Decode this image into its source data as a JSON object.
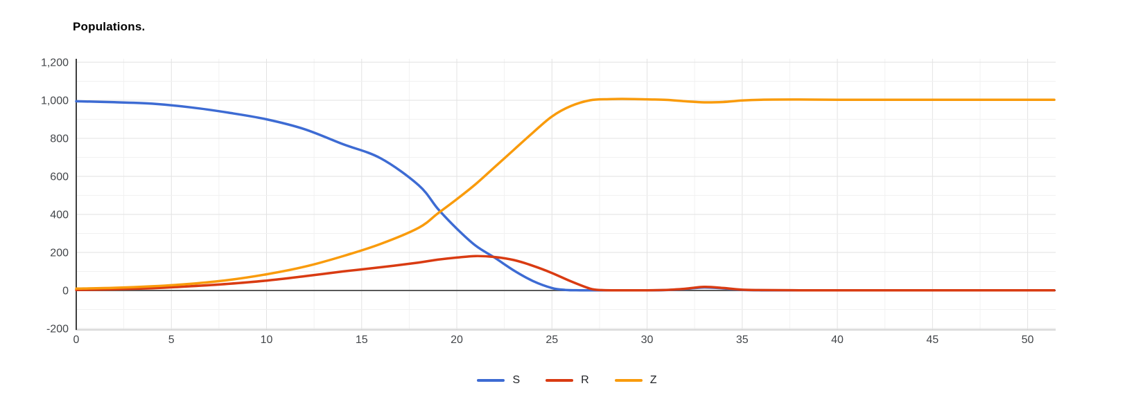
{
  "title": "Populations.",
  "colors": {
    "series_s": "#3D6BD3",
    "series_r": "#D93B12",
    "series_z": "#F99B0C",
    "grid_major": "#e2e2e2",
    "grid_minor": "#f1f1f1",
    "zero_line": "#585858",
    "y_axis_line": "#3c3c3c",
    "bottom_border": "#cccccc",
    "tick_label": "#424549",
    "background": "#ffffff"
  },
  "chart_data": {
    "type": "line",
    "title": "Populations.",
    "xlabel": "",
    "ylabel": "",
    "xlim": [
      0,
      51.4
    ],
    "ylim": [
      -200,
      1200
    ],
    "x_ticks": [
      0,
      5,
      10,
      15,
      20,
      25,
      30,
      35,
      40,
      45,
      50
    ],
    "x_minor_step": 2.5,
    "y_ticks": [
      -200,
      0,
      200,
      400,
      600,
      800,
      1000,
      1200
    ],
    "y_tick_labels": [
      "-200",
      "0",
      "200",
      "400",
      "600",
      "800",
      "1,000",
      "1,200"
    ],
    "y_minor_step": 100,
    "grid": "on",
    "smooth": true,
    "legend_position": "bottom-center",
    "series": [
      {
        "name": "S",
        "color": "#3D6BD3",
        "points": [
          [
            0,
            995
          ],
          [
            2,
            990
          ],
          [
            4,
            982
          ],
          [
            6,
            963
          ],
          [
            8,
            935
          ],
          [
            10,
            900
          ],
          [
            12,
            848
          ],
          [
            14,
            770
          ],
          [
            16,
            695
          ],
          [
            18,
            553
          ],
          [
            19,
            430
          ],
          [
            20,
            325
          ],
          [
            21,
            235
          ],
          [
            22,
            172
          ],
          [
            23,
            105
          ],
          [
            24,
            50
          ],
          [
            25,
            13
          ],
          [
            25.7,
            3
          ],
          [
            26.5,
            1
          ],
          [
            28,
            1
          ],
          [
            30,
            1
          ],
          [
            31,
            2
          ],
          [
            32,
            8
          ],
          [
            33,
            16
          ],
          [
            34,
            11
          ],
          [
            35,
            3
          ],
          [
            36,
            1
          ],
          [
            38,
            1
          ],
          [
            42,
            1
          ],
          [
            46,
            1
          ],
          [
            49,
            1
          ],
          [
            51.4,
            1
          ]
        ]
      },
      {
        "name": "R",
        "color": "#D93B12",
        "points": [
          [
            0,
            3
          ],
          [
            2,
            6
          ],
          [
            4,
            12
          ],
          [
            6,
            22
          ],
          [
            8,
            35
          ],
          [
            10,
            52
          ],
          [
            12,
            75
          ],
          [
            14,
            100
          ],
          [
            16,
            122
          ],
          [
            18,
            147
          ],
          [
            19,
            162
          ],
          [
            20,
            173
          ],
          [
            21,
            181
          ],
          [
            22,
            176
          ],
          [
            23,
            160
          ],
          [
            24,
            130
          ],
          [
            25,
            92
          ],
          [
            26,
            48
          ],
          [
            27,
            10
          ],
          [
            27.6,
            2
          ],
          [
            28.5,
            1
          ],
          [
            30,
            1
          ],
          [
            31,
            3
          ],
          [
            32,
            9
          ],
          [
            33,
            19
          ],
          [
            34,
            13
          ],
          [
            35,
            4
          ],
          [
            36,
            2
          ],
          [
            38,
            1
          ],
          [
            42,
            1
          ],
          [
            46,
            1
          ],
          [
            49,
            1
          ],
          [
            51.4,
            1
          ]
        ]
      },
      {
        "name": "Z",
        "color": "#F99B0C",
        "points": [
          [
            0,
            10
          ],
          [
            2,
            14
          ],
          [
            4,
            22
          ],
          [
            6,
            35
          ],
          [
            8,
            55
          ],
          [
            10,
            85
          ],
          [
            12,
            125
          ],
          [
            14,
            180
          ],
          [
            16,
            245
          ],
          [
            18,
            330
          ],
          [
            19,
            405
          ],
          [
            20,
            480
          ],
          [
            21,
            560
          ],
          [
            22,
            650
          ],
          [
            23,
            740
          ],
          [
            24,
            830
          ],
          [
            25,
            915
          ],
          [
            26,
            970
          ],
          [
            27,
            1000
          ],
          [
            28,
            1006
          ],
          [
            29,
            1007
          ],
          [
            30,
            1005
          ],
          [
            31,
            1002
          ],
          [
            32,
            995
          ],
          [
            33,
            989
          ],
          [
            34,
            991
          ],
          [
            35,
            999
          ],
          [
            36,
            1003
          ],
          [
            38,
            1004
          ],
          [
            40,
            1003
          ],
          [
            44,
            1003
          ],
          [
            48,
            1003
          ],
          [
            51.4,
            1003
          ]
        ]
      }
    ]
  }
}
